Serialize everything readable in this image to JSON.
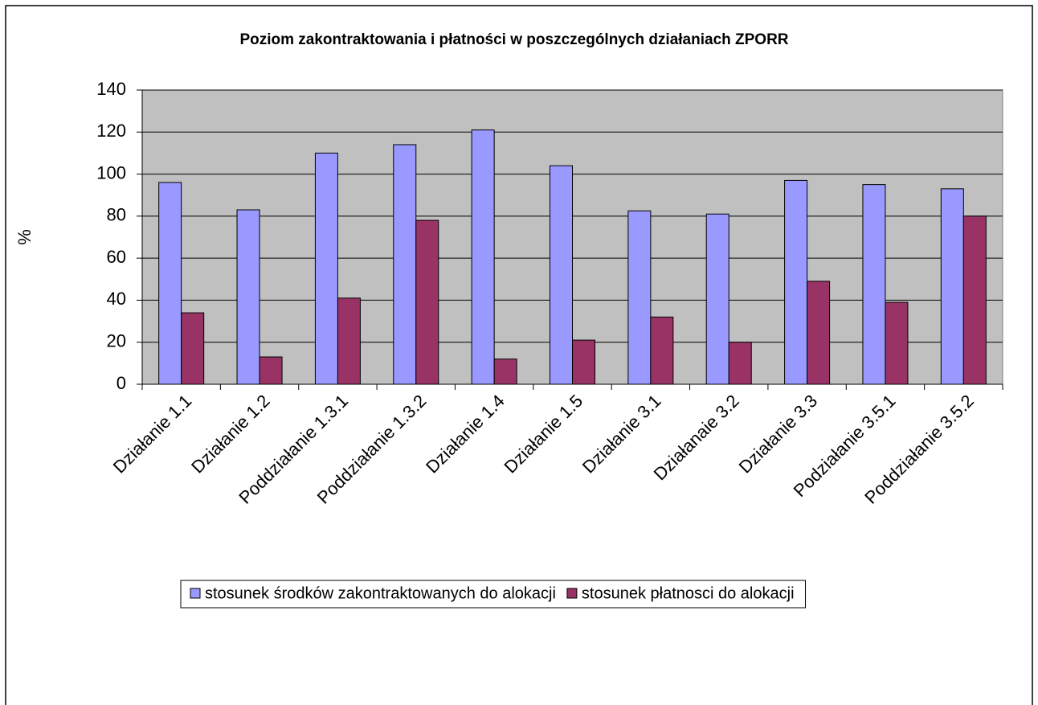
{
  "chart_data": {
    "type": "bar",
    "title": "Poziom zakontraktowania i płatności w poszczególnych działaniach ZPORR",
    "y_label": "%",
    "categories": [
      "Działanie 1.1",
      "Działanie 1.2",
      "Poddziałanie 1.3.1",
      "Poddziałanie 1.3.2",
      "Działanie 1.4",
      "Działanie 1.5",
      "Działanie 3.1",
      "Działanaie 3.2",
      "Działanie 3.3",
      "Podziałanie 3.5.1",
      "Poddziałanie 3.5.2"
    ],
    "series": [
      {
        "name": "stosunek środków zakontraktowanych do alokacji",
        "color": "#9999ff",
        "values": [
          96,
          83,
          110,
          114,
          121,
          104,
          82.5,
          81,
          97,
          95,
          93
        ]
      },
      {
        "name": "stosunek płatnosci do alokacji",
        "color": "#993366",
        "values": [
          34,
          13,
          41,
          78,
          12,
          21,
          32,
          20,
          49,
          39,
          80
        ]
      }
    ],
    "ylim": [
      0,
      140
    ],
    "yticks": [
      0,
      20,
      40,
      60,
      80,
      100,
      120,
      140
    ],
    "grid": true,
    "legend": "bottom"
  }
}
